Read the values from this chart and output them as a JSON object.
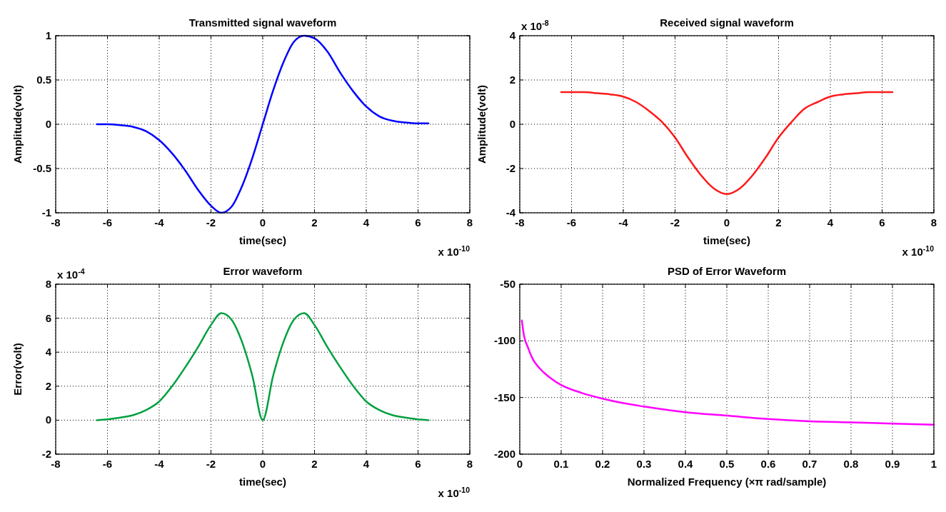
{
  "chart_data": [
    {
      "type": "line",
      "title": "Transmitted signal waveform",
      "xlabel": "time(sec)",
      "ylabel": "Amplitude(volt)",
      "annotations": [
        "x 10$^{-10}$"
      ],
      "xlim": [
        -8,
        8
      ],
      "ylim": [
        -1,
        1
      ],
      "xticks": [
        -8,
        -6,
        -4,
        -2,
        0,
        2,
        4,
        6,
        8
      ],
      "yticks": [
        -1,
        -0.5,
        0,
        0.5,
        1
      ],
      "grid": true,
      "x": [
        -6.4,
        -6,
        -5.5,
        -5,
        -4.5,
        -4,
        -3.5,
        -3,
        -2.5,
        -2,
        -1.6,
        -1.2,
        -0.8,
        -0.4,
        0,
        0.4,
        0.8,
        1.2,
        1.6,
        2,
        2.5,
        3,
        3.5,
        4,
        4.5,
        5,
        5.5,
        6,
        6.4
      ],
      "series": [
        {
          "color": "#0000ff",
          "values": [
            0,
            0,
            -0.01,
            -0.03,
            -0.08,
            -0.18,
            -0.33,
            -0.52,
            -0.74,
            -0.92,
            -1,
            -0.93,
            -0.7,
            -0.38,
            0,
            0.38,
            0.7,
            0.93,
            1,
            0.97,
            0.82,
            0.58,
            0.37,
            0.2,
            0.09,
            0.04,
            0.02,
            0.01,
            0.01
          ]
        }
      ]
    },
    {
      "type": "line",
      "title": "Received signal waveform",
      "xlabel": "time(sec)",
      "ylabel": "Amplitude(volt)",
      "annotations": [
        "x 10$^{-8}$",
        "x 10$^{-10}$"
      ],
      "xlim": [
        -8,
        8
      ],
      "ylim": [
        -4,
        4
      ],
      "xticks": [
        -8,
        -6,
        -4,
        -2,
        0,
        2,
        4,
        6,
        8
      ],
      "yticks": [
        -4,
        -2,
        0,
        2,
        4
      ],
      "grid": true,
      "x": [
        -6.4,
        -5.5,
        -5,
        -4.5,
        -4,
        -3.5,
        -3,
        -2.5,
        -2,
        -1.5,
        -1,
        -0.5,
        0,
        0.5,
        1,
        1.5,
        2,
        2.5,
        3,
        3.5,
        4,
        4.5,
        5,
        5.5,
        6.4
      ],
      "series": [
        {
          "color": "#ff1a1a",
          "values": [
            1.45,
            1.45,
            1.4,
            1.35,
            1.25,
            1.0,
            0.6,
            0.1,
            -0.6,
            -1.5,
            -2.3,
            -2.9,
            -3.15,
            -2.9,
            -2.3,
            -1.5,
            -0.6,
            0.1,
            0.7,
            1.0,
            1.25,
            1.35,
            1.4,
            1.45,
            1.45
          ]
        }
      ]
    },
    {
      "type": "line",
      "title": "Error waveform",
      "xlabel": "time(sec)",
      "ylabel": "Error(volt)",
      "annotations": [
        "x 10$^{-4}$",
        "x 10$^{-10}$"
      ],
      "xlim": [
        -8,
        8
      ],
      "ylim": [
        -2,
        8
      ],
      "xticks": [
        -8,
        -6,
        -4,
        -2,
        0,
        2,
        4,
        6,
        8
      ],
      "yticks": [
        -2,
        0,
        2,
        4,
        6,
        8
      ],
      "grid": true,
      "x": [
        -6.4,
        -6,
        -5.5,
        -5,
        -4.5,
        -4,
        -3.5,
        -3,
        -2.5,
        -2,
        -1.6,
        -1.2,
        -0.8,
        -0.4,
        0,
        0.4,
        0.8,
        1.2,
        1.6,
        2,
        2.5,
        3,
        3.5,
        4,
        4.5,
        5,
        5.5,
        6,
        6.4
      ],
      "series": [
        {
          "color": "#00a040",
          "values": [
            0,
            0.05,
            0.15,
            0.3,
            0.6,
            1.1,
            2.0,
            3.1,
            4.3,
            5.6,
            6.3,
            5.9,
            4.6,
            2.6,
            0,
            2.6,
            4.6,
            5.9,
            6.3,
            5.6,
            4.3,
            3.1,
            2.0,
            1.1,
            0.6,
            0.3,
            0.15,
            0.05,
            0
          ]
        }
      ]
    },
    {
      "type": "line",
      "title": "PSD of Error Waveform",
      "xlabel": "Normalized Frequency  (×π rad/sample)",
      "xlim": [
        0,
        1
      ],
      "ylim": [
        -200,
        -50
      ],
      "xticks": [
        0,
        0.1,
        0.2,
        0.3,
        0.4,
        0.5,
        0.6,
        0.7,
        0.8,
        0.9,
        1
      ],
      "yticks": [
        -200,
        -150,
        -100,
        -50
      ],
      "grid": true,
      "x": [
        0.005,
        0.01,
        0.02,
        0.03,
        0.05,
        0.075,
        0.1,
        0.15,
        0.2,
        0.25,
        0.3,
        0.4,
        0.5,
        0.6,
        0.7,
        0.8,
        0.9,
        1
      ],
      "series": [
        {
          "color": "#ff00ff",
          "values": [
            -82,
            -95,
            -106,
            -115,
            -125,
            -133,
            -139,
            -146,
            -151,
            -155,
            -158,
            -163,
            -166,
            -169,
            -171,
            -172,
            -173,
            -174
          ]
        }
      ]
    }
  ]
}
